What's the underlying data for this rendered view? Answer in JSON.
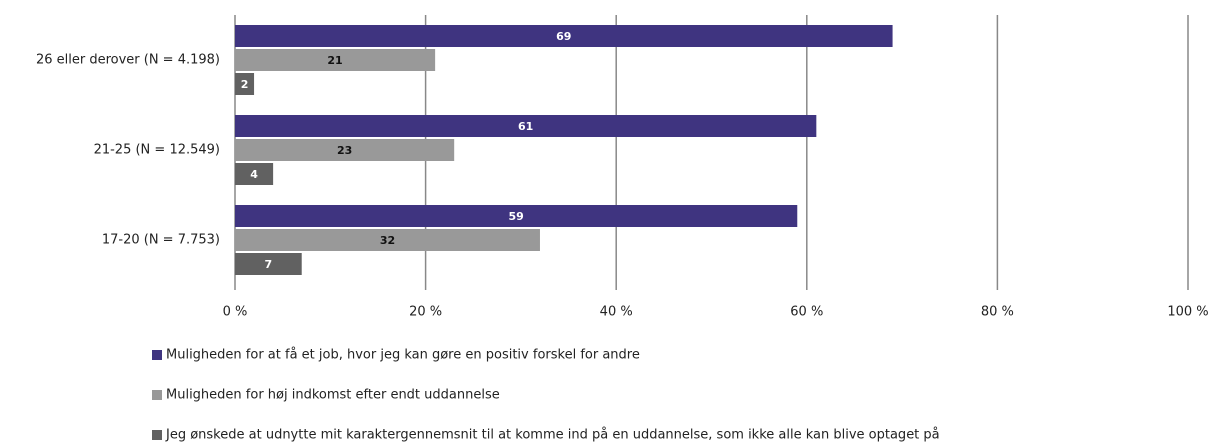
{
  "chart_data": {
    "type": "bar",
    "orientation": "horizontal",
    "categories": [
      "26 eller derover (N = 4.198)",
      "21-25 (N = 12.549)",
      "17-20 (N = 7.753)"
    ],
    "series": [
      {
        "name": "Muligheden for at få et job, hvor jeg kan gøre en positiv forskel for andre",
        "color": "#3f3480",
        "label_color": "#ffffff",
        "values": [
          69,
          61,
          59
        ]
      },
      {
        "name": "Muligheden for høj indkomst efter endt uddannelse",
        "color": "#999999",
        "label_color": "#111111",
        "values": [
          21,
          23,
          32
        ]
      },
      {
        "name": "Jeg ønskede at udnytte mit karaktergennemsnit til at komme ind på en uddannelse, som ikke alle kan blive optaget på",
        "color": "#616161",
        "label_color": "#ffffff",
        "values": [
          2,
          4,
          7
        ]
      }
    ],
    "xlim": [
      0,
      100
    ],
    "xticks": [
      {
        "value": 0,
        "label": "0 %"
      },
      {
        "value": 20,
        "label": "20 %"
      },
      {
        "value": 40,
        "label": "40 %"
      },
      {
        "value": 60,
        "label": "60 %"
      },
      {
        "value": 80,
        "label": "80 %"
      },
      {
        "value": 100,
        "label": "100 %"
      }
    ],
    "grid": true
  }
}
